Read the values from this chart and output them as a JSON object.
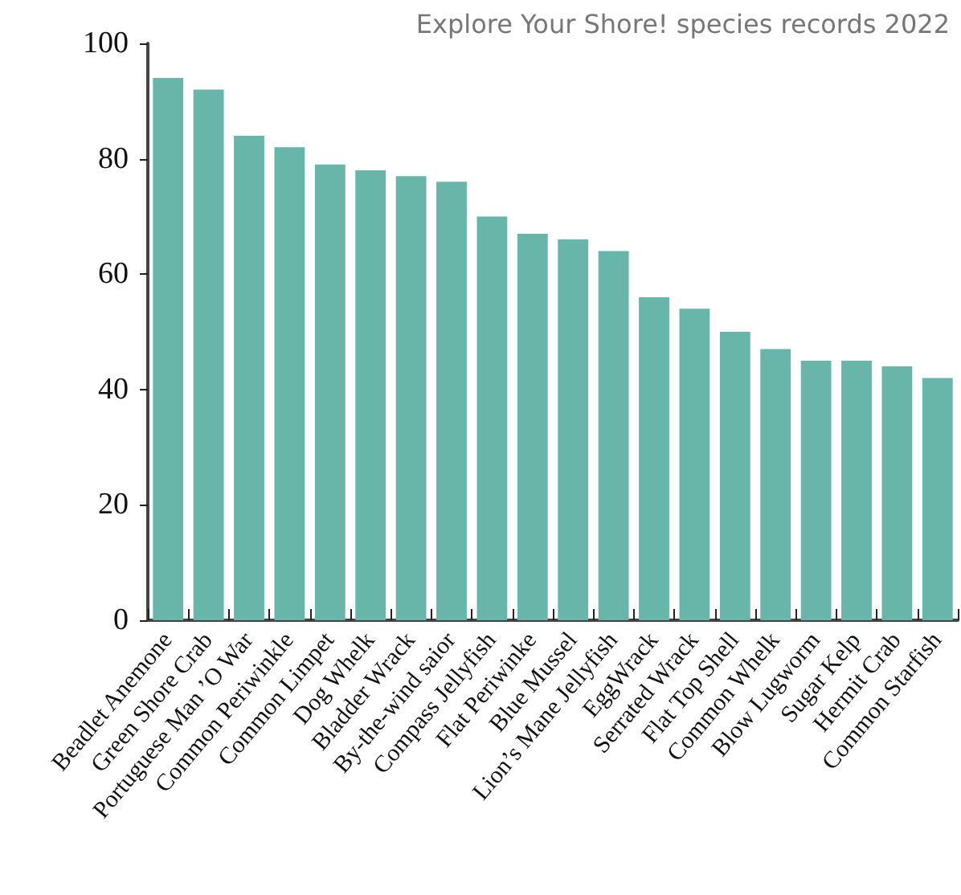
{
  "chart_data": {
    "type": "bar",
    "title": "Explore Your Shore! species records 2022",
    "categories": [
      "Beadlet Anemone",
      "Green Shore Crab",
      "Portuguese Man ’O War",
      "Common Periwinkle",
      "Common Limpet",
      "Dog Whelk",
      "Bladder Wrack",
      "By-the-wind saior",
      "Compass Jellyfish",
      "Flat Periwinke",
      "Blue Mussel",
      "Lion’s Mane Jellyfish",
      "EggWrack",
      "Serrated Wrack",
      "Flat Top Shell",
      "Common Whelk",
      "Blow Lugworm",
      "Sugar Kelp",
      "Hermit Crab",
      "Common Starfish"
    ],
    "values": [
      94,
      92,
      84,
      82,
      79,
      78,
      77,
      76,
      70,
      67,
      66,
      64,
      56,
      54,
      50,
      47,
      45,
      45,
      44,
      42
    ],
    "color": "#68b5aa",
    "ylim": [
      0,
      100
    ],
    "yticks": [
      0,
      20,
      40,
      60,
      80,
      100
    ],
    "grid": false
  }
}
